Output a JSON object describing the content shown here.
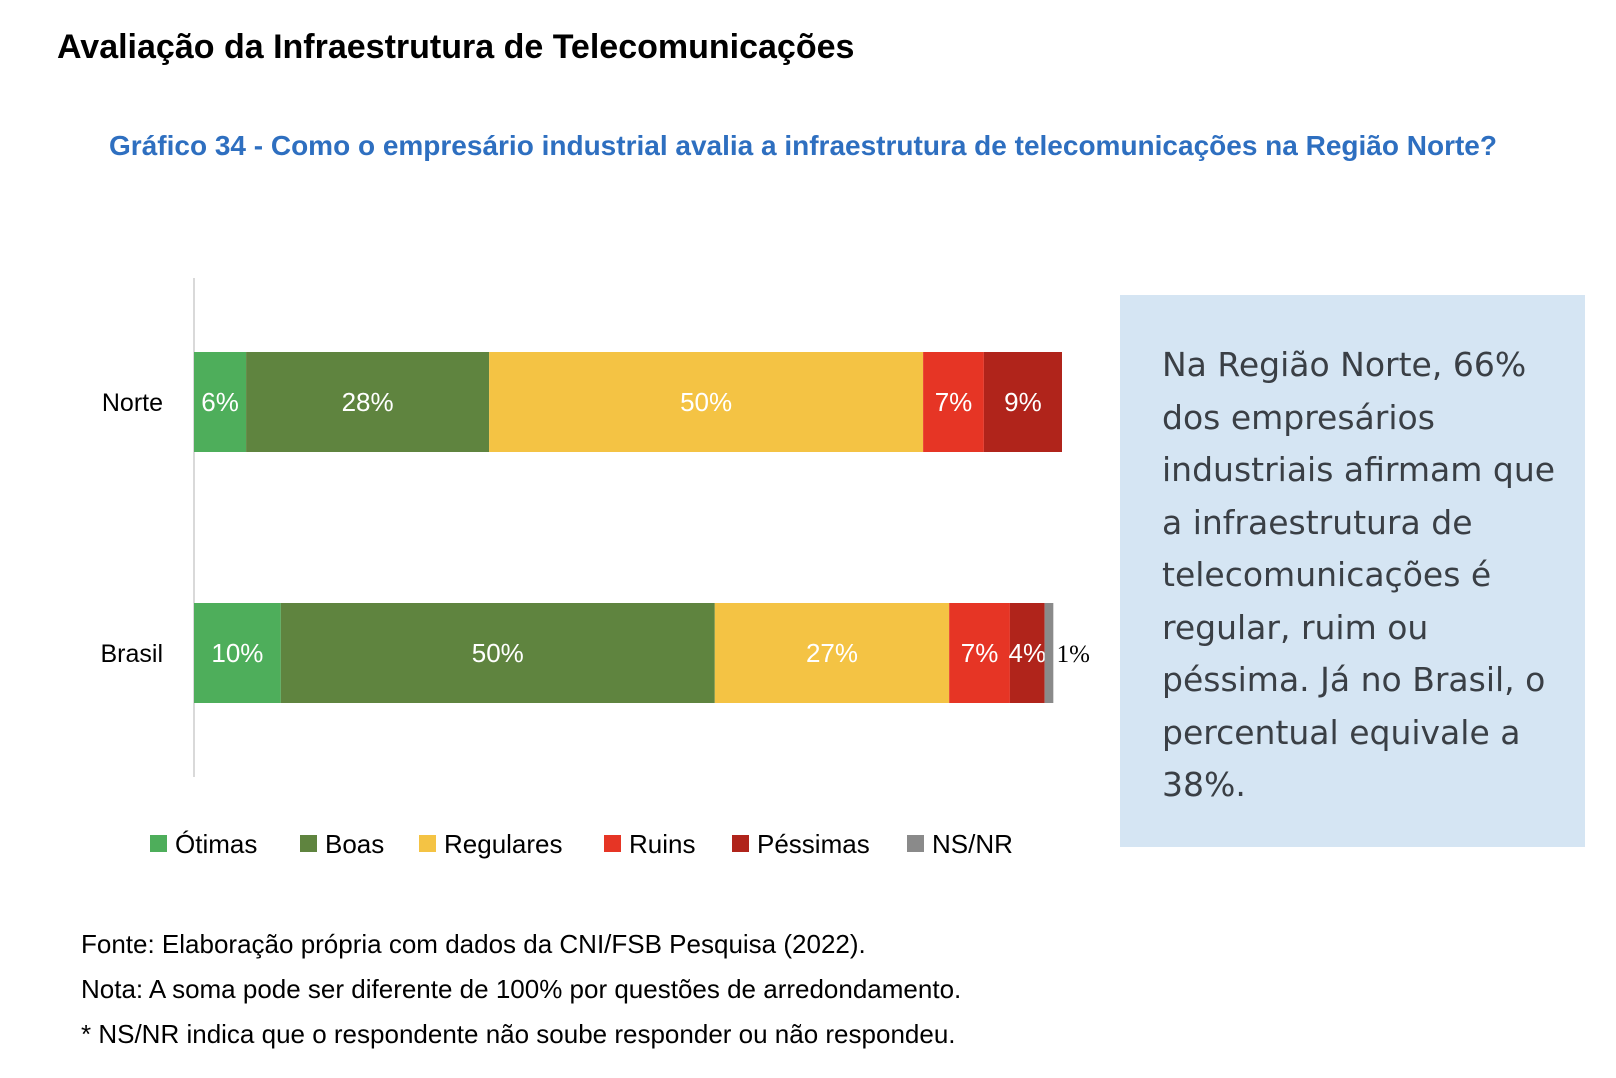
{
  "page": {
    "heading": "Avaliação da Infraestrutura de Telecomunicações"
  },
  "chart_data": {
    "type": "bar",
    "orientation": "horizontal",
    "stacked": true,
    "title": "Gráfico 34 - Como o empresário industrial avalia a infraestrutura de telecomunicações na Região Norte?",
    "categories": [
      "Norte",
      "Brasil"
    ],
    "series": [
      {
        "name": "Ótimas",
        "color": "#4eae5b",
        "values": [
          6,
          10
        ]
      },
      {
        "name": "Boas",
        "color": "#5f843f",
        "values": [
          28,
          50
        ]
      },
      {
        "name": "Regulares",
        "color": "#f4c344",
        "values": [
          50,
          27
        ]
      },
      {
        "name": "Ruins",
        "color": "#e63525",
        "values": [
          7,
          7
        ]
      },
      {
        "name": "Péssimas",
        "color": "#b0241b",
        "values": [
          9,
          4
        ]
      },
      {
        "name": "NS/NR",
        "color": "#8a8a8a",
        "values": [
          0,
          1
        ]
      }
    ],
    "data_labels": [
      [
        "6%",
        "28%",
        "50%",
        "7%",
        "9%",
        null
      ],
      [
        "10%",
        "50%",
        "27%",
        "7%",
        "4%",
        "1%"
      ]
    ],
    "xlim": [
      0,
      100
    ],
    "legend": "bottom",
    "grid": false
  },
  "callout": {
    "text": "Na Região Norte, 66% dos empresários industriais afirmam que a infraestrutura de telecomunicações é regular, ruim ou péssima. Já no Brasil, o percentual equivale a 38%."
  },
  "notes": {
    "source": "Fonte: Elaboração própria com dados da CNI/FSB Pesquisa (2022).",
    "note": "Nota: A soma pode ser diferente de 100% por questões de arredondamento.",
    "nsnr": "* NS/NR indica que o respondente não soube responder ou não respondeu."
  }
}
